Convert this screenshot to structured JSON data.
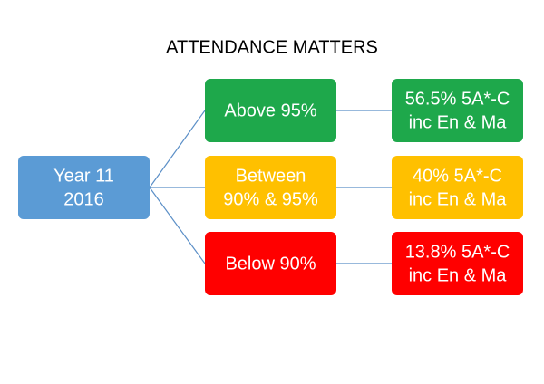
{
  "title": "ATTENDANCE MATTERS",
  "root": {
    "label": [
      "Year 11",
      "2016"
    ]
  },
  "branches": [
    {
      "label": [
        "Above 95%"
      ],
      "result": [
        "56.5% 5A*-C",
        "inc En & Ma"
      ]
    },
    {
      "label": [
        "Between",
        "90% & 95%"
      ],
      "result": [
        "40% 5A*-C",
        "inc En & Ma"
      ]
    },
    {
      "label": [
        "Below 90%"
      ],
      "result": [
        "13.8% 5A*-C",
        "inc En & Ma"
      ]
    }
  ]
}
